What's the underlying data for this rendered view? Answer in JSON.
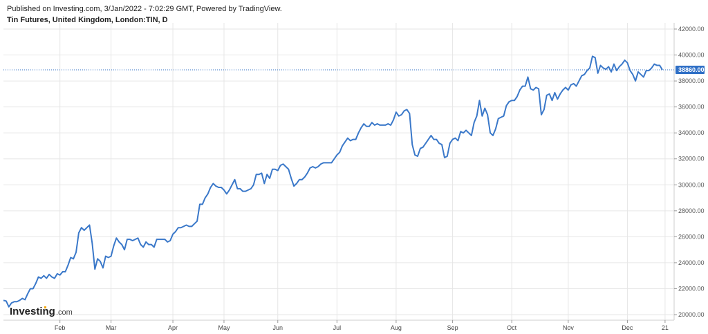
{
  "header": {
    "published": "Published on Investing.com, 3/Jan/2022 - 7:02:29 GMT, Powered by TradingView.",
    "symbol": "Tin Futures, United Kingdom, London:TIN, D"
  },
  "logo": {
    "word": "Investing",
    "suffix": ".com"
  },
  "colors": {
    "line": "#3a78c9",
    "last_badge": "#2f6fc6",
    "grid": "#e6e6e6"
  },
  "chart_data": {
    "type": "line",
    "ylim": [
      20000,
      42000
    ],
    "yticks": [
      20000,
      22000,
      24000,
      26000,
      28000,
      30000,
      32000,
      34000,
      36000,
      38000,
      40000,
      42000
    ],
    "ytick_labels": [
      "20000.00",
      "22000.00",
      "24000.00",
      "26000.00",
      "28000.00",
      "30000.00",
      "32000.00",
      "34000.00",
      "36000.00",
      "38000.00",
      "40000.00",
      "42000.00"
    ],
    "xticks": [
      {
        "label": "Feb",
        "index": 21
      },
      {
        "label": "Mar",
        "index": 40
      },
      {
        "label": "Apr",
        "index": 63
      },
      {
        "label": "May",
        "index": 82
      },
      {
        "label": "Jun",
        "index": 102
      },
      {
        "label": "Jul",
        "index": 124
      },
      {
        "label": "Aug",
        "index": 146
      },
      {
        "label": "Sep",
        "index": 167
      },
      {
        "label": "Oct",
        "index": 189
      },
      {
        "label": "Nov",
        "index": 210
      },
      {
        "label": "Dec",
        "index": 232
      },
      {
        "label": "21",
        "index": 246
      }
    ],
    "last_value": 38860,
    "last_label": "38860.00",
    "series": [
      {
        "values": [
          21100,
          21050,
          20600,
          20900,
          21000,
          21000,
          21100,
          21250,
          21150,
          21600,
          22000,
          22000,
          22400,
          22900,
          22800,
          23000,
          22800,
          23100,
          22900,
          22800,
          23150,
          23050,
          23300,
          23300,
          23800,
          24400,
          24300,
          24800,
          26300,
          26700,
          26500,
          26700,
          26900,
          25500,
          23500,
          24300,
          24100,
          23600,
          24500,
          24400,
          24500,
          25300,
          25900,
          25600,
          25400,
          25000,
          25800,
          25800,
          25700,
          25800,
          25900,
          25400,
          25200,
          25600,
          25400,
          25400,
          25200,
          25800,
          25800,
          25800,
          25800,
          25600,
          25700,
          26200,
          26400,
          26700,
          26700,
          26800,
          26900,
          26800,
          26800,
          27000,
          27200,
          28500,
          28500,
          29000,
          29300,
          29800,
          30100,
          29900,
          29800,
          29800,
          29600,
          29300,
          29600,
          30000,
          30400,
          29700,
          29700,
          29500,
          29500,
          29600,
          29700,
          30000,
          30800,
          30800,
          30900,
          30100,
          30800,
          30500,
          31200,
          31200,
          31100,
          31500,
          31600,
          31400,
          31200,
          30500,
          29900,
          30100,
          30400,
          30400,
          30600,
          30900,
          31300,
          31400,
          31300,
          31400,
          31600,
          31700,
          31700,
          31700,
          31700,
          32000,
          32300,
          32500,
          33000,
          33300,
          33600,
          33400,
          33500,
          33500,
          34000,
          34400,
          34700,
          34500,
          34500,
          34800,
          34600,
          34700,
          34600,
          34600,
          34600,
          34700,
          34600,
          35000,
          35600,
          35300,
          35400,
          35700,
          35800,
          35500,
          33100,
          32300,
          32200,
          32800,
          32900,
          33200,
          33500,
          33800,
          33500,
          33500,
          33200,
          33100,
          32100,
          32200,
          33200,
          33500,
          33600,
          33400,
          34100,
          34000,
          34200,
          34000,
          33800,
          34800,
          35300,
          36500,
          35300,
          35900,
          35400,
          34000,
          33800,
          34300,
          35100,
          35200,
          35300,
          36100,
          36400,
          36500,
          36500,
          36800,
          37300,
          37600,
          37600,
          38300,
          37400,
          37300,
          37500,
          37400,
          35400,
          35800,
          36900,
          37000,
          36500,
          37100,
          36600,
          37000,
          37300,
          37500,
          37300,
          37700,
          37800,
          37600,
          38000,
          38400,
          38500,
          38800,
          39000,
          39900,
          39800,
          38600,
          39200,
          39000,
          38900,
          39100,
          38700,
          39300,
          38800,
          39100,
          39300,
          39600,
          39400,
          38800,
          38500,
          38000,
          38700,
          38500,
          38300,
          38800,
          38800,
          39000,
          39300,
          39200,
          39200,
          38860
        ]
      }
    ]
  }
}
